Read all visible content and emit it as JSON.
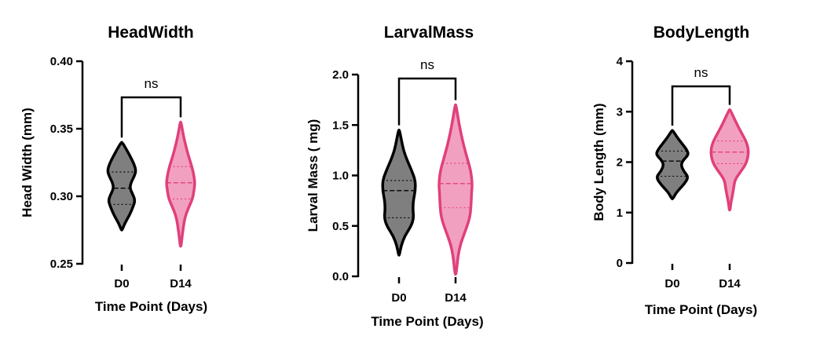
{
  "chart_data": [
    {
      "type": "violin",
      "title": "HeadWidth",
      "xlabel": "Time Point (Days)",
      "ylabel": "Head Width (mm)",
      "ylim": [
        0.25,
        0.4
      ],
      "yticks": [
        "0.25",
        "0.30",
        "0.35",
        "0.40"
      ],
      "categories": [
        "D0",
        "D14"
      ],
      "significance": "ns",
      "series": [
        {
          "color": "#7f7f7f",
          "edge": "#000000",
          "min": 0.275,
          "max": 0.34,
          "q1": 0.294,
          "median": 0.306,
          "q3": 0.318,
          "density": [
            [
              0.275,
              0.02
            ],
            [
              0.28,
              0.15
            ],
            [
              0.286,
              0.38
            ],
            [
              0.292,
              0.55
            ],
            [
              0.297,
              0.66
            ],
            [
              0.302,
              0.52
            ],
            [
              0.306,
              0.4
            ],
            [
              0.31,
              0.45
            ],
            [
              0.315,
              0.62
            ],
            [
              0.319,
              0.7
            ],
            [
              0.324,
              0.6
            ],
            [
              0.33,
              0.4
            ],
            [
              0.336,
              0.18
            ],
            [
              0.34,
              0.02
            ]
          ]
        },
        {
          "color": "#f2a0c0",
          "edge": "#e0407a",
          "min": 0.263,
          "max": 0.355,
          "q1": 0.298,
          "median": 0.31,
          "q3": 0.322,
          "density": [
            [
              0.263,
              0.02
            ],
            [
              0.27,
              0.07
            ],
            [
              0.278,
              0.14
            ],
            [
              0.285,
              0.22
            ],
            [
              0.292,
              0.4
            ],
            [
              0.298,
              0.58
            ],
            [
              0.304,
              0.65
            ],
            [
              0.31,
              0.7
            ],
            [
              0.316,
              0.64
            ],
            [
              0.322,
              0.55
            ],
            [
              0.33,
              0.38
            ],
            [
              0.338,
              0.24
            ],
            [
              0.346,
              0.12
            ],
            [
              0.355,
              0.02
            ]
          ]
        }
      ]
    },
    {
      "type": "violin",
      "title": "LarvalMass",
      "xlabel": "Time Point (Days)",
      "ylabel": "Larval Mass ( mg)",
      "ylim": [
        0.0,
        2.0
      ],
      "yticks": [
        "0.0",
        "0.5",
        "1.0",
        "1.5",
        "2.0"
      ],
      "categories": [
        "D0",
        "D14"
      ],
      "significance": "ns",
      "series": [
        {
          "color": "#7f7f7f",
          "edge": "#000000",
          "min": 0.21,
          "max": 1.45,
          "q1": 0.58,
          "median": 0.85,
          "q3": 0.95,
          "density": [
            [
              0.21,
              0.02
            ],
            [
              0.3,
              0.1
            ],
            [
              0.4,
              0.28
            ],
            [
              0.5,
              0.6
            ],
            [
              0.58,
              0.72
            ],
            [
              0.66,
              0.68
            ],
            [
              0.75,
              0.7
            ],
            [
              0.85,
              0.8
            ],
            [
              0.95,
              0.8
            ],
            [
              1.05,
              0.62
            ],
            [
              1.15,
              0.4
            ],
            [
              1.25,
              0.22
            ],
            [
              1.35,
              0.12
            ],
            [
              1.45,
              0.02
            ]
          ]
        },
        {
          "color": "#f2a0c0",
          "edge": "#e0407a",
          "min": 0.02,
          "max": 1.7,
          "q1": 0.68,
          "median": 0.92,
          "q3": 1.12,
          "density": [
            [
              0.02,
              0.02
            ],
            [
              0.1,
              0.07
            ],
            [
              0.2,
              0.12
            ],
            [
              0.32,
              0.24
            ],
            [
              0.45,
              0.48
            ],
            [
              0.58,
              0.7
            ],
            [
              0.7,
              0.76
            ],
            [
              0.82,
              0.78
            ],
            [
              0.92,
              0.82
            ],
            [
              1.05,
              0.74
            ],
            [
              1.15,
              0.6
            ],
            [
              1.28,
              0.42
            ],
            [
              1.42,
              0.26
            ],
            [
              1.55,
              0.14
            ],
            [
              1.7,
              0.02
            ]
          ]
        }
      ]
    },
    {
      "type": "violin",
      "title": "BodyLength",
      "xlabel": "Time Point (Days)",
      "ylabel": "Body Length (mm)",
      "ylim": [
        0,
        4
      ],
      "yticks": [
        "0",
        "1",
        "2",
        "3",
        "4"
      ],
      "categories": [
        "D0",
        "D14"
      ],
      "significance": "ns",
      "series": [
        {
          "color": "#7f7f7f",
          "edge": "#000000",
          "min": 1.27,
          "max": 2.63,
          "q1": 1.72,
          "median": 2.02,
          "q3": 2.22,
          "density": [
            [
              1.27,
              0.02
            ],
            [
              1.4,
              0.2
            ],
            [
              1.55,
              0.55
            ],
            [
              1.7,
              0.8
            ],
            [
              1.82,
              0.55
            ],
            [
              1.95,
              0.42
            ],
            [
              2.05,
              0.55
            ],
            [
              2.15,
              0.8
            ],
            [
              2.25,
              0.7
            ],
            [
              2.38,
              0.45
            ],
            [
              2.5,
              0.22
            ],
            [
              2.63,
              0.02
            ]
          ]
        },
        {
          "color": "#f2a0c0",
          "edge": "#e0407a",
          "min": 1.05,
          "max": 3.04,
          "q1": 1.97,
          "median": 2.2,
          "q3": 2.42,
          "density": [
            [
              1.05,
              0.02
            ],
            [
              1.2,
              0.06
            ],
            [
              1.35,
              0.14
            ],
            [
              1.5,
              0.2
            ],
            [
              1.65,
              0.26
            ],
            [
              1.8,
              0.52
            ],
            [
              1.95,
              0.78
            ],
            [
              2.1,
              0.9
            ],
            [
              2.25,
              0.92
            ],
            [
              2.4,
              0.82
            ],
            [
              2.55,
              0.62
            ],
            [
              2.7,
              0.42
            ],
            [
              2.85,
              0.24
            ],
            [
              3.04,
              0.02
            ]
          ]
        }
      ]
    }
  ]
}
